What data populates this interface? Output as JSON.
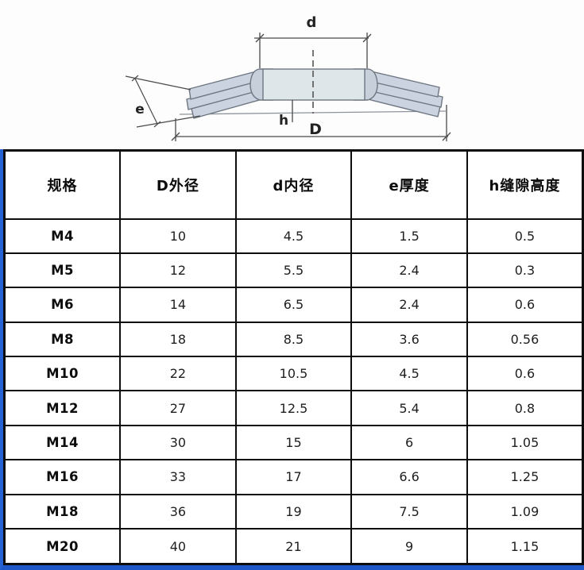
{
  "diagram": {
    "labels": {
      "d": "d",
      "D": "D",
      "e": "e",
      "h": "h"
    },
    "colors": {
      "wing_fill": "#cbd3e0",
      "center_fill": "#dfe6e9",
      "shoulder_fill": "#c7cfdb",
      "outline": "#6e7681",
      "dim_line": "#4a4a4a"
    }
  },
  "table": {
    "headers": [
      "规格",
      "D外径",
      "d内径",
      "e厚度",
      "h缝隙高度"
    ],
    "rows": [
      {
        "spec": "M4",
        "values": [
          "10",
          "4.5",
          "1.5",
          "0.5"
        ]
      },
      {
        "spec": "M5",
        "values": [
          "12",
          "5.5",
          "2.4",
          "0.3"
        ]
      },
      {
        "spec": "M6",
        "values": [
          "14",
          "6.5",
          "2.4",
          "0.6"
        ]
      },
      {
        "spec": "M8",
        "values": [
          "18",
          "8.5",
          "3.6",
          "0.56"
        ]
      },
      {
        "spec": "M10",
        "values": [
          "22",
          "10.5",
          "4.5",
          "0.6"
        ]
      },
      {
        "spec": "M12",
        "values": [
          "27",
          "12.5",
          "5.4",
          "0.8"
        ]
      },
      {
        "spec": "M14",
        "values": [
          "30",
          "15",
          "6",
          "1.05"
        ]
      },
      {
        "spec": "M16",
        "values": [
          "33",
          "17",
          "6.6",
          "1.25"
        ]
      },
      {
        "spec": "M18",
        "values": [
          "36",
          "19",
          "7.5",
          "1.09"
        ]
      },
      {
        "spec": "M20",
        "values": [
          "40",
          "21",
          "9",
          "1.15"
        ]
      }
    ],
    "border_color": "#0d0d0d",
    "accent_color": "#2563d4"
  }
}
